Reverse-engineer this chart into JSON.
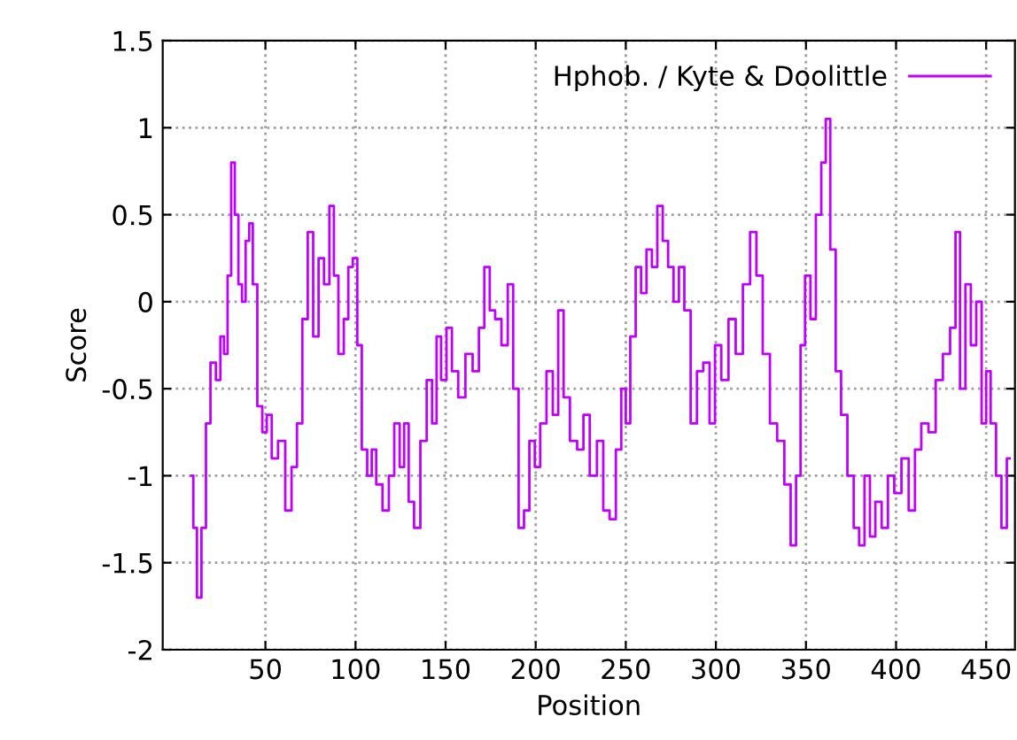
{
  "chart_data": {
    "type": "step",
    "xlabel": "Position",
    "ylabel": "Score",
    "x": [
      9,
      11,
      13,
      16,
      18,
      21,
      24,
      26,
      28,
      30,
      32,
      34,
      36,
      38,
      40,
      42,
      44,
      47,
      49.5,
      52,
      55,
      59,
      63,
      66,
      69,
      72,
      75,
      78,
      81,
      84,
      87,
      89,
      92,
      95,
      97,
      100,
      102,
      105,
      108,
      110,
      113,
      117,
      120,
      123,
      126,
      128,
      131,
      134,
      138,
      141,
      144,
      146,
      149,
      152,
      155,
      159,
      163,
      167,
      170,
      173,
      176,
      179,
      183,
      186,
      189,
      192,
      195,
      198,
      201,
      204,
      208,
      211,
      214,
      217,
      221,
      225,
      228,
      232,
      236,
      239,
      243,
      246,
      249,
      251,
      254,
      257,
      260,
      263,
      266,
      269,
      272,
      275,
      278,
      281,
      284,
      288,
      291,
      295,
      298,
      301,
      305,
      309,
      313,
      317,
      321,
      324,
      328,
      332,
      336,
      340,
      343,
      346,
      348,
      351,
      354,
      357,
      360,
      362,
      365,
      368,
      371,
      375,
      378,
      381,
      384,
      387,
      390,
      394,
      397,
      401,
      405,
      409,
      412,
      416,
      420,
      424,
      428,
      432,
      434,
      437,
      440,
      443,
      446,
      449,
      451,
      454,
      457,
      460,
      463
    ],
    "series": [
      {
        "name": "Hphob. / Kyte & Doolittle",
        "color": "#c000ff",
        "values": [
          -1.0,
          -1.3,
          -1.7,
          -1.3,
          -0.7,
          -0.35,
          -0.45,
          -0.2,
          -0.3,
          0.15,
          0.8,
          0.5,
          0.1,
          0.0,
          0.35,
          0.45,
          0.1,
          -0.6,
          -0.75,
          -0.65,
          -0.9,
          -0.8,
          -1.2,
          -0.95,
          -0.7,
          -0.1,
          0.4,
          -0.2,
          0.25,
          0.1,
          0.55,
          0.15,
          -0.3,
          -0.1,
          0.2,
          0.25,
          -0.25,
          -0.85,
          -1.0,
          -0.85,
          -1.05,
          -1.2,
          -1.0,
          -0.7,
          -0.95,
          -0.7,
          -1.15,
          -1.3,
          -0.8,
          -0.45,
          -0.7,
          -0.2,
          -0.45,
          -0.15,
          -0.4,
          -0.55,
          -0.3,
          -0.4,
          -0.15,
          0.2,
          -0.05,
          -0.1,
          -0.25,
          0.1,
          -0.5,
          -1.3,
          -1.2,
          -0.8,
          -0.95,
          -0.7,
          -0.4,
          -0.65,
          -0.05,
          -0.55,
          -0.8,
          -0.85,
          -0.65,
          -1.0,
          -0.8,
          -1.2,
          -1.25,
          -0.85,
          -0.5,
          -0.7,
          -0.2,
          0.2,
          0.05,
          0.3,
          0.2,
          0.55,
          0.35,
          0.2,
          0.0,
          0.2,
          -0.05,
          -0.7,
          -0.4,
          -0.35,
          -0.7,
          -0.25,
          -0.45,
          -0.1,
          -0.3,
          0.1,
          0.4,
          0.15,
          -0.3,
          -0.7,
          -0.8,
          -1.05,
          -1.4,
          -1.0,
          -0.25,
          0.15,
          -0.1,
          0.5,
          0.8,
          1.05,
          0.3,
          -0.4,
          -0.65,
          -1.0,
          -1.3,
          -1.4,
          -1.0,
          -1.35,
          -1.15,
          -1.3,
          -1.0,
          -1.1,
          -0.9,
          -1.2,
          -0.85,
          -0.7,
          -0.75,
          -0.45,
          -0.3,
          -0.15,
          0.4,
          -0.5,
          0.1,
          -0.25,
          0.0,
          -0.7,
          -0.4,
          -0.7,
          -1.0,
          -1.3,
          -0.9
        ]
      }
    ],
    "xlim": [
      -7,
      466
    ],
    "ylim": [
      -2,
      1.5
    ],
    "xticks": [
      50,
      100,
      150,
      200,
      250,
      300,
      350,
      400,
      450
    ],
    "yticks": [
      -2,
      -1.5,
      -1,
      -0.5,
      0,
      0.5,
      1,
      1.5
    ],
    "grid": true,
    "legend": "top right",
    "line_style": "solid",
    "marker": "none"
  }
}
